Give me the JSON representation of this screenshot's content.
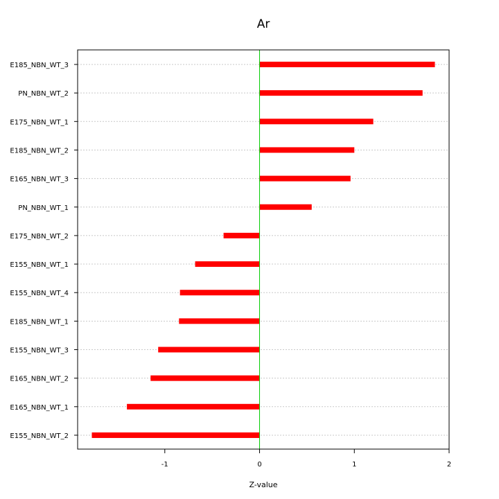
{
  "chart_data": {
    "type": "bar",
    "orientation": "horizontal",
    "title": "Ar",
    "xlabel": "Z-value",
    "ylabel": "",
    "xlim": [
      -1.92,
      2.0
    ],
    "x_ticks": [
      -1,
      0,
      1,
      2
    ],
    "grid": "horizontal dotted",
    "colors": {
      "bar": "#ff0000",
      "zero_line": "#00cc00",
      "grid": "#c8c8c8"
    },
    "categories": [
      "E185_NBN_WT_3",
      "PN_NBN_WT_2",
      "E175_NBN_WT_1",
      "E185_NBN_WT_2",
      "E165_NBN_WT_3",
      "PN_NBN_WT_1",
      "E175_NBN_WT_2",
      "E155_NBN_WT_1",
      "E155_NBN_WT_4",
      "E185_NBN_WT_1",
      "E155_NBN_WT_3",
      "E165_NBN_WT_2",
      "E165_NBN_WT_1",
      "E155_NBN_WT_2"
    ],
    "values": [
      1.85,
      1.72,
      1.2,
      1.0,
      0.96,
      0.55,
      -0.38,
      -0.68,
      -0.84,
      -0.85,
      -1.07,
      -1.15,
      -1.4,
      -1.77
    ]
  }
}
